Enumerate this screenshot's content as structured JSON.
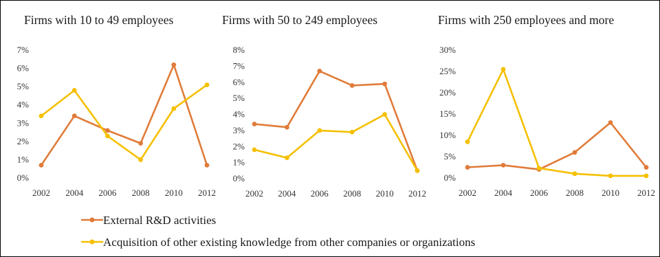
{
  "chart_data": [
    {
      "type": "line",
      "title": "Firms with 10 to 49 employees",
      "categories": [
        "2002",
        "2004",
        "2006",
        "2008",
        "2010",
        "2012"
      ],
      "ylim": [
        0,
        7
      ],
      "yticks": [
        "0%",
        "1%",
        "2%",
        "3%",
        "4%",
        "5%",
        "6%",
        "7%"
      ],
      "series": [
        {
          "name": "External R&D activities",
          "color": "#e07b39",
          "values": [
            0.7,
            3.4,
            2.6,
            1.9,
            6.2,
            0.7
          ]
        },
        {
          "name": "Acquisition of other existing knowledge from other companies or organizations",
          "color": "#f5c000",
          "values": [
            3.4,
            4.8,
            2.3,
            1.0,
            3.8,
            5.1
          ]
        }
      ]
    },
    {
      "type": "line",
      "title": "Firms with 50 to 249 employees",
      "categories": [
        "2002",
        "2004",
        "2006",
        "2008",
        "2010",
        "2012"
      ],
      "ylim": [
        0,
        8
      ],
      "yticks": [
        "0%",
        "1%",
        "2%",
        "3%",
        "4%",
        "5%",
        "6%",
        "7%",
        "8%"
      ],
      "series": [
        {
          "name": "External R&D activities",
          "color": "#e07b39",
          "values": [
            3.4,
            3.2,
            6.7,
            5.8,
            5.9,
            0.5
          ]
        },
        {
          "name": "Acquisition of other existing knowledge from other companies or organizations",
          "color": "#f5c000",
          "values": [
            1.8,
            1.3,
            3.0,
            2.9,
            4.0,
            0.5
          ]
        }
      ]
    },
    {
      "type": "line",
      "title": "Firms with 250 employees and more",
      "categories": [
        "2002",
        "2004",
        "2006",
        "2008",
        "2010",
        "2012"
      ],
      "ylim": [
        0,
        30
      ],
      "yticks": [
        "0%",
        "5%",
        "10%",
        "15%",
        "20%",
        "25%",
        "30%"
      ],
      "series": [
        {
          "name": "External R&D activities",
          "color": "#e07b39",
          "values": [
            2.5,
            3.0,
            2.0,
            6.0,
            13.0,
            2.5
          ]
        },
        {
          "name": "Acquisition of other existing knowledge from other companies or organizations",
          "color": "#f5c000",
          "values": [
            8.5,
            25.5,
            2.3,
            1.0,
            0.5,
            0.5
          ]
        }
      ]
    }
  ],
  "legend": [
    {
      "label": "External R&D activities",
      "color": "#e07b39"
    },
    {
      "label": "Acquisition of other existing knowledge from other companies or organizations",
      "color": "#f5c000"
    }
  ]
}
